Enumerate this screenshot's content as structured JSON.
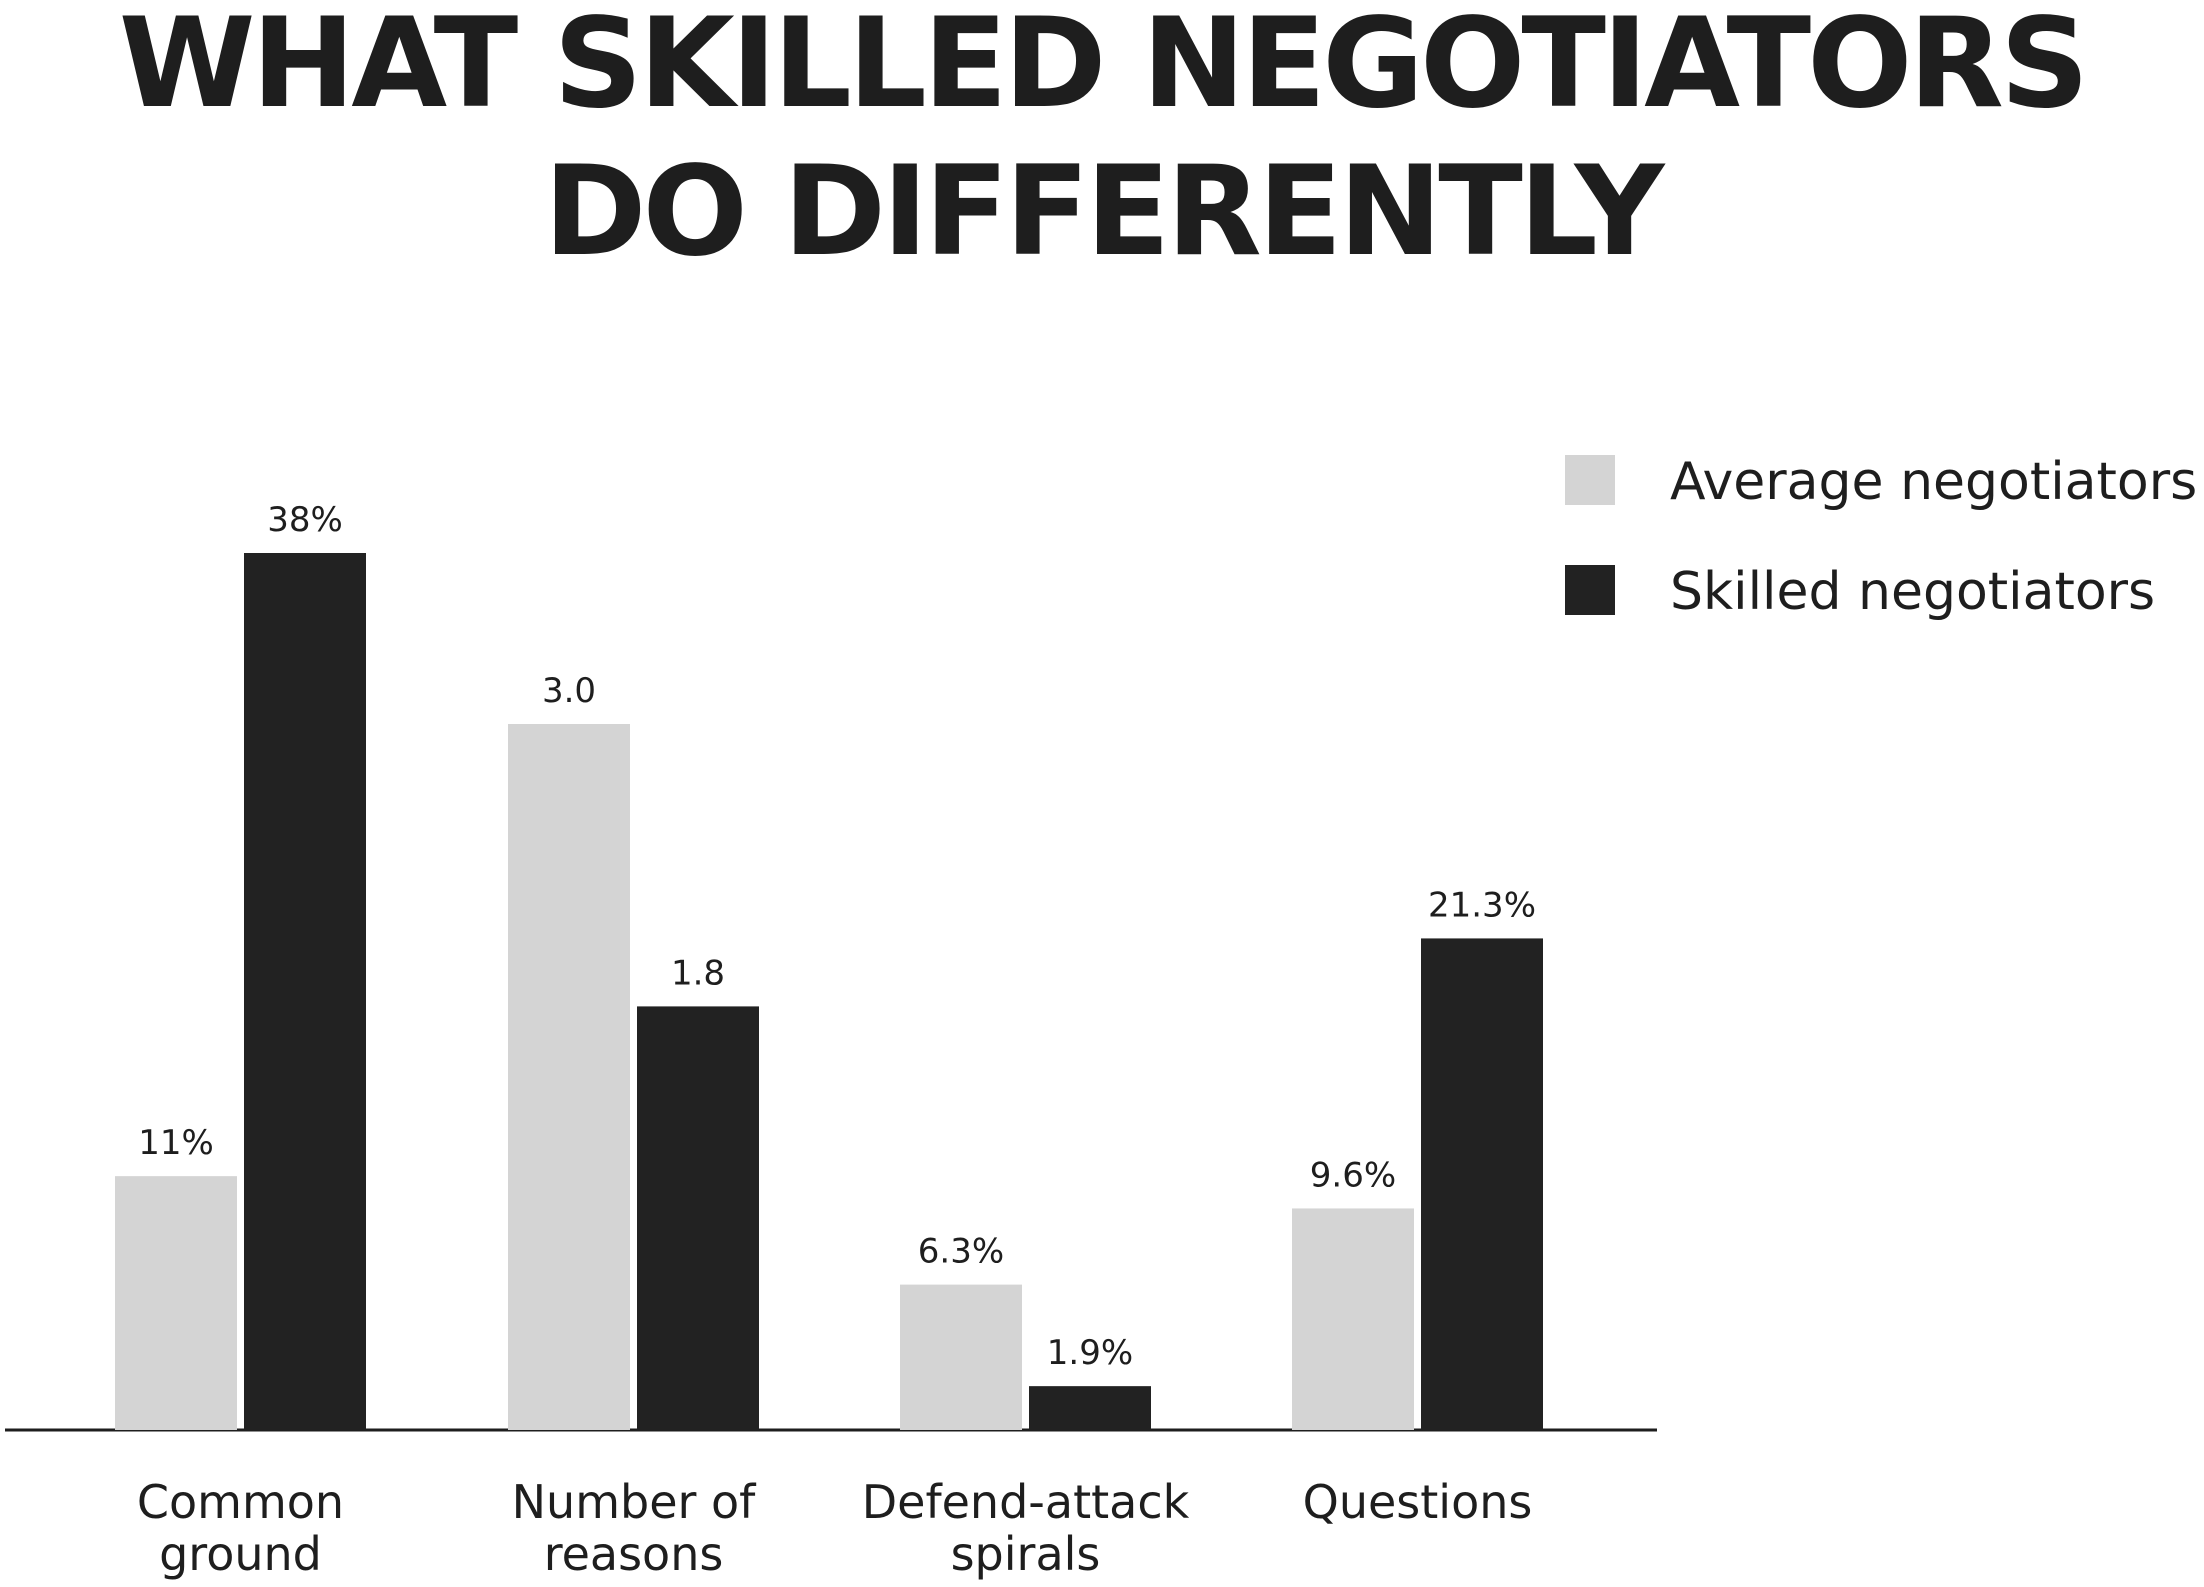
{
  "chart_data": {
    "type": "bar",
    "title_lines": [
      "WHAT SKILLED NEGOTIATORS",
      "DO DIFFERENTLY"
    ],
    "categories": [
      [
        "Common",
        "ground"
      ],
      [
        "Number of",
        "reasons"
      ],
      [
        "Defend-attack",
        "spirals"
      ],
      [
        "Questions"
      ]
    ],
    "series": [
      {
        "name": "Average negotiators",
        "color": "#d4d4d4",
        "values": [
          11,
          3.0,
          6.3,
          9.6
        ],
        "labels": [
          "11%",
          "3.0",
          "6.3%",
          "9.6%"
        ]
      },
      {
        "name": "Skilled negotiators",
        "color": "#222222",
        "values": [
          38,
          1.8,
          1.9,
          21.3
        ],
        "labels": [
          "38%",
          "1.8",
          "1.9%",
          "21.3%"
        ]
      }
    ],
    "legend_position": "top-right",
    "grid": false,
    "ylim": [
      0,
      38
    ],
    "axis_color": "#1e1e1e"
  }
}
